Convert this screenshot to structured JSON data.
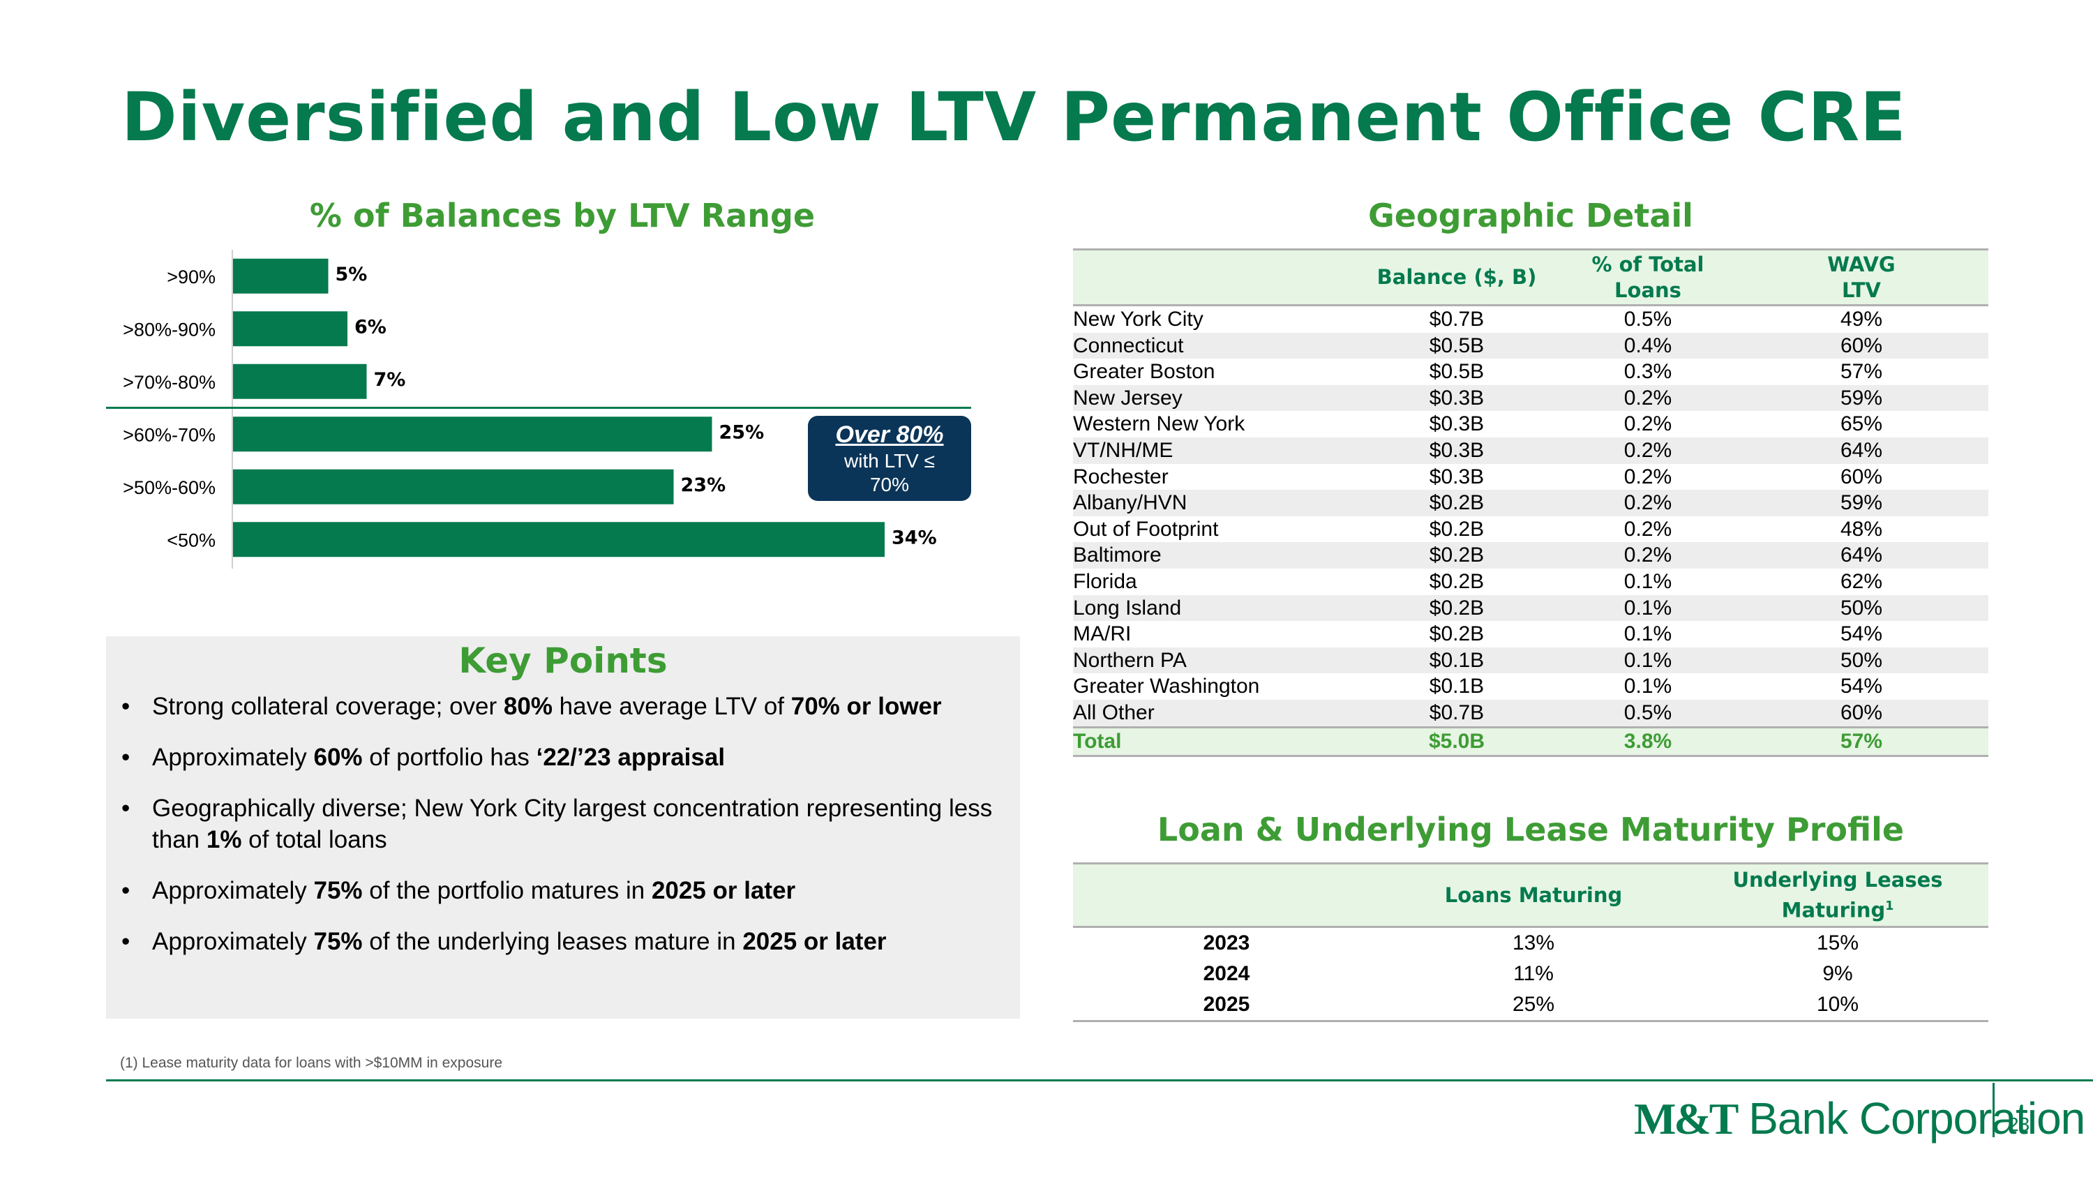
{
  "page": {
    "title": "Diversified and Low LTV Permanent Office CRE",
    "page_number": "23",
    "brand": {
      "bold": "M&T",
      "rest": " Bank Corporation"
    },
    "footnote": "(1) Lease maturity data for loans with >$10MM in exposure"
  },
  "chart": {
    "heading": "% of Balances by LTV Range",
    "callout": {
      "headline": "Over 80%",
      "line1": "with LTV ≤",
      "line2": "70%"
    }
  },
  "chart_data": {
    "type": "bar",
    "orientation": "horizontal",
    "title": "% of Balances by LTV Range",
    "categories": [
      ">90%",
      ">80%-90%",
      ">70%-80%",
      ">60%-70%",
      ">50%-60%",
      "<50%"
    ],
    "values": [
      5,
      6,
      7,
      25,
      23,
      34
    ],
    "value_labels": [
      "5%",
      "6%",
      "7%",
      "25%",
      "23%",
      "34%"
    ],
    "xlim": [
      0,
      40
    ],
    "color": "#047a4e",
    "grid": false
  },
  "key_points": {
    "heading": "Key Points",
    "bullet": "•",
    "items": [
      [
        {
          "t": "Strong collateral coverage; over "
        },
        {
          "t": "80%",
          "b": true
        },
        {
          "t": " have average LTV of "
        },
        {
          "t": "70% or lower",
          "b": true
        }
      ],
      [
        {
          "t": "Approximately "
        },
        {
          "t": "60%",
          "b": true
        },
        {
          "t": " of portfolio has "
        },
        {
          "t": "‘22/’23 appraisal",
          "b": true
        }
      ],
      [
        {
          "t": "Geographically diverse; New York City largest concentration representing less than "
        },
        {
          "t": "1%",
          "b": true
        },
        {
          "t": " of total loans"
        }
      ],
      [
        {
          "t": "Approximately "
        },
        {
          "t": "75%",
          "b": true
        },
        {
          "t": " of the portfolio matures in "
        },
        {
          "t": "2025 or later",
          "b": true
        }
      ],
      [
        {
          "t": "Approximately "
        },
        {
          "t": "75%",
          "b": true
        },
        {
          "t": " of the underlying leases mature in "
        },
        {
          "t": "2025 or later",
          "b": true
        }
      ]
    ]
  },
  "geographic": {
    "heading": "Geographic Detail",
    "headers": {
      "balance": "Balance ($, B)",
      "pct_line1": "% of Total",
      "pct_line2": "Loans",
      "wavg_line1": "WAVG",
      "wavg_line2": "LTV"
    },
    "rows": [
      [
        "New York City",
        "$0.7B",
        "0.5%",
        "49%"
      ],
      [
        "Connecticut",
        "$0.5B",
        "0.4%",
        "60%"
      ],
      [
        "Greater Boston",
        "$0.5B",
        "0.3%",
        "57%"
      ],
      [
        "New Jersey",
        "$0.3B",
        "0.2%",
        "59%"
      ],
      [
        "Western New York",
        "$0.3B",
        "0.2%",
        "65%"
      ],
      [
        "VT/NH/ME",
        "$0.3B",
        "0.2%",
        "64%"
      ],
      [
        "Rochester",
        "$0.3B",
        "0.2%",
        "60%"
      ],
      [
        "Albany/HVN",
        "$0.2B",
        "0.2%",
        "59%"
      ],
      [
        "Out of Footprint",
        "$0.2B",
        "0.2%",
        "48%"
      ],
      [
        "Baltimore",
        "$0.2B",
        "0.2%",
        "64%"
      ],
      [
        "Florida",
        "$0.2B",
        "0.1%",
        "62%"
      ],
      [
        "Long Island",
        "$0.2B",
        "0.1%",
        "50%"
      ],
      [
        "MA/RI",
        "$0.2B",
        "0.1%",
        "54%"
      ],
      [
        "Northern PA",
        "$0.1B",
        "0.1%",
        "50%"
      ],
      [
        "Greater Washington",
        "$0.1B",
        "0.1%",
        "54%"
      ],
      [
        "All Other",
        "$0.7B",
        "0.5%",
        "60%"
      ]
    ],
    "total": [
      "Total",
      "$5.0B",
      "3.8%",
      "57%"
    ]
  },
  "maturity": {
    "heading": "Loan & Underlying Lease Maturity Profile",
    "headers": {
      "loans": "Loans Maturing",
      "leases_line1": "Underlying Leases",
      "leases_line2": "Maturing",
      "leases_sup": "1"
    },
    "rows": [
      [
        "2023",
        "13%",
        "15%"
      ],
      [
        "2024",
        "11%",
        "9%"
      ],
      [
        "2025",
        "25%",
        "10%"
      ]
    ]
  }
}
